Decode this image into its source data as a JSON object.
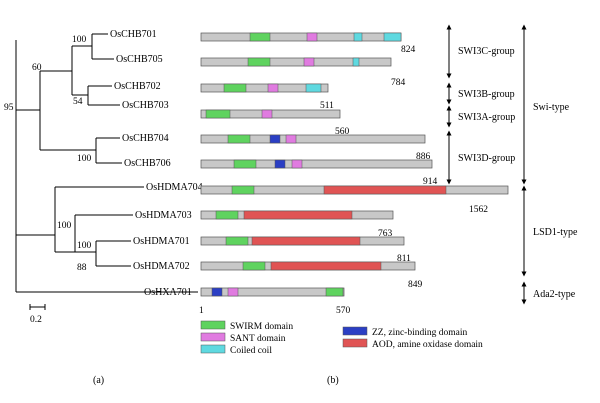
{
  "tree": {
    "leaves": [
      "OsCHB701",
      "OsCHB705",
      "OsCHB702",
      "OsCHB703",
      "OsCHB704",
      "OsCHB706",
      "OsHDMA704",
      "OsHDMA703",
      "OsHDMA701",
      "OsHDMA702",
      "OsHXA701"
    ],
    "bootstrap": [
      "100",
      "60",
      "54",
      "95",
      "100",
      "100",
      "100",
      "88"
    ],
    "scale_label": "0.2"
  },
  "proteins": [
    {
      "name": "OsCHB701",
      "length": "824",
      "domains": [
        "swirm",
        "sant",
        "coiled",
        "coiled"
      ]
    },
    {
      "name": "OsCHB705",
      "length": "784",
      "domains": [
        "swirm",
        "sant",
        "coiled"
      ]
    },
    {
      "name": "OsCHB702",
      "length": "511",
      "domains": [
        "swirm",
        "sant",
        "coiled"
      ]
    },
    {
      "name": "OsCHB703",
      "length": "560",
      "domains": [
        "swirm",
        "sant"
      ]
    },
    {
      "name": "OsCHB704",
      "length": "886",
      "domains": [
        "swirm",
        "zz",
        "sant"
      ]
    },
    {
      "name": "OsCHB706",
      "length": "914",
      "domains": [
        "swirm",
        "zz",
        "sant"
      ]
    },
    {
      "name": "OsHDMA704",
      "length": "1562",
      "domains": [
        "swirm",
        "aod"
      ]
    },
    {
      "name": "OsHDMA703",
      "length": "763",
      "domains": [
        "swirm",
        "aod"
      ]
    },
    {
      "name": "OsHDMA701",
      "length": "811",
      "domains": [
        "swirm",
        "aod"
      ]
    },
    {
      "name": "OsHDMA702",
      "length": "849",
      "domains": [
        "swirm",
        "aod"
      ]
    },
    {
      "name": "OsHXA701",
      "length": "570",
      "start": "1",
      "domains": [
        "zz",
        "sant",
        "swirm"
      ]
    }
  ],
  "groups": [
    "SWI3C-group",
    "SWI3B-group",
    "SWI3A-group",
    "SWI3D-group"
  ],
  "types": [
    "Swi-type",
    "LSD1-type",
    "Ada2-type"
  ],
  "legend": [
    {
      "key": "swirm",
      "label": "SWIRM domain",
      "color": "#5fd35f"
    },
    {
      "key": "sant",
      "label": "SANT domain",
      "color": "#e07be0"
    },
    {
      "key": "coiled",
      "label": "Coiled coil",
      "color": "#5fd9e0"
    },
    {
      "key": "zz",
      "label": "ZZ, zinc-binding domain",
      "color": "#2b3fc4"
    },
    {
      "key": "aod",
      "label": "AOD, amine oxidase domain",
      "color": "#e05454"
    }
  ],
  "bar_color": "#c8c8c8",
  "panel_labels": [
    "(a)",
    "(b)"
  ]
}
